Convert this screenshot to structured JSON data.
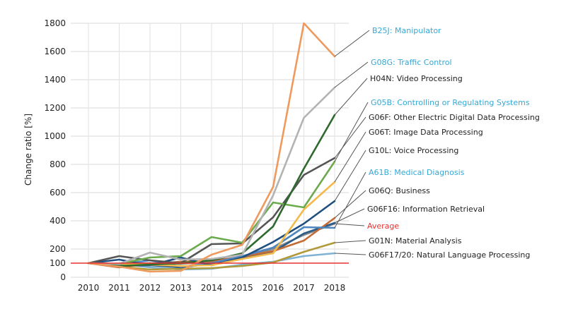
{
  "chart_data": {
    "type": "line",
    "title": "",
    "xlabel": "",
    "ylabel": "Change ratio [%]",
    "ylim": [
      0,
      1800
    ],
    "yticks": [
      0,
      200,
      400,
      600,
      800,
      1000,
      1200,
      1400,
      1600,
      1800
    ],
    "reference_line": {
      "value": 100,
      "label": "100",
      "color": "#e8312f"
    },
    "x": [
      2010,
      2011,
      2012,
      2013,
      2014,
      2015,
      2016,
      2017,
      2018
    ],
    "x_labels": [
      "2010",
      "2011",
      "2012",
      "2013",
      "2014",
      "2015",
      "2016",
      "2017",
      "2018"
    ],
    "series": [
      {
        "name": "B25J: Manipulator",
        "color": "#ee9a5e",
        "label_color": "#35a8d6",
        "values": [
          100,
          75,
          40,
          45,
          160,
          230,
          640,
          1800,
          1565
        ]
      },
      {
        "name": "G08G: Traffic Control",
        "color": "#b3b3b3",
        "label_color": "#35a8d6",
        "values": [
          100,
          95,
          175,
          125,
          130,
          160,
          580,
          1130,
          1345
        ]
      },
      {
        "name": "H04N: Video Processing",
        "color": "#2e6a2e",
        "label_color": "#222222",
        "values": [
          100,
          80,
          90,
          100,
          120,
          170,
          360,
          770,
          1150
        ]
      },
      {
        "name": "G05B: Controlling or Regulating Systems",
        "color": "#6caa4e",
        "label_color": "#35a8d6",
        "values": [
          100,
          95,
          140,
          150,
          285,
          245,
          530,
          495,
          820
        ]
      },
      {
        "name": "G06F: Other Electric Digital Data Processing",
        "color": "#555555",
        "label_color": "#222222",
        "values": [
          100,
          150,
          120,
          100,
          235,
          240,
          425,
          725,
          845
        ]
      },
      {
        "name": "G06T: Image Data Processing",
        "color": "#f3b94a",
        "label_color": "#222222",
        "values": [
          100,
          95,
          90,
          80,
          85,
          130,
          170,
          480,
          675
        ]
      },
      {
        "name": "G10L: Voice Processing",
        "color": "#1f4f80",
        "label_color": "#222222",
        "values": [
          100,
          125,
          85,
          140,
          85,
          140,
          250,
          380,
          540
        ]
      },
      {
        "name": "A61B: Medical Diagnosis",
        "color": "#4f86c0",
        "label_color": "#35a8d6",
        "values": [
          100,
          90,
          120,
          75,
          100,
          150,
          210,
          355,
          350
        ]
      },
      {
        "name": "G06Q: Business",
        "color": "#c46a34",
        "label_color": "#222222",
        "values": [
          100,
          70,
          95,
          110,
          115,
          145,
          185,
          260,
          420
        ]
      },
      {
        "name": "G06F16: Information Retrieval",
        "color": "#2a5c87",
        "label_color": "#222222",
        "values": [
          100,
          80,
          85,
          70,
          95,
          135,
          180,
          310,
          385
        ]
      },
      {
        "name": "Average",
        "color": "#8a8a8a",
        "label_color": "#e8312f",
        "values": [
          100,
          95,
          100,
          95,
          110,
          145,
          200,
          300,
          380
        ]
      },
      {
        "name": "G01N: Material Analysis",
        "color": "#b09a3a",
        "label_color": "#222222",
        "values": [
          100,
          75,
          55,
          60,
          65,
          80,
          105,
          180,
          245
        ]
      },
      {
        "name": "G06F17/20: Natural Language Processing",
        "color": "#7fb3d5",
        "label_color": "#222222",
        "values": [
          100,
          95,
          70,
          55,
          60,
          90,
          110,
          150,
          170
        ]
      }
    ]
  }
}
